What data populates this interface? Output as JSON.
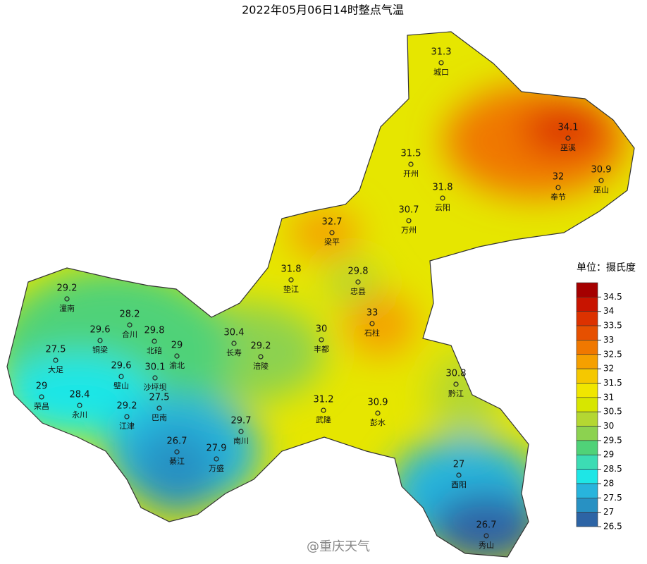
{
  "title": "2022年05月06日14时整点气温",
  "stations": [
    {
      "name": "城口",
      "value": 31.3
    },
    {
      "name": "巫溪",
      "value": 34.1
    },
    {
      "name": "开州",
      "value": 31.5
    },
    {
      "name": "奉节",
      "value": 32
    },
    {
      "name": "巫山",
      "value": 30.9
    },
    {
      "name": "云阳",
      "value": 31.8
    },
    {
      "name": "万州",
      "value": 30.7
    },
    {
      "name": "梁平",
      "value": 32.7
    },
    {
      "name": "垫江",
      "value": 31.8
    },
    {
      "name": "忠县",
      "value": 29.8
    },
    {
      "name": "潼南",
      "value": 29.2
    },
    {
      "name": "合川",
      "value": 28.2
    },
    {
      "name": "石柱",
      "value": 33
    },
    {
      "name": "铜梁",
      "value": 29.6
    },
    {
      "name": "北碚",
      "value": 29.8
    },
    {
      "name": "长寿",
      "value": 30.4
    },
    {
      "name": "丰都",
      "value": 30
    },
    {
      "name": "大足",
      "value": 27.5
    },
    {
      "name": "渝北",
      "value": 29
    },
    {
      "name": "涪陵",
      "value": 29.2
    },
    {
      "name": "璧山",
      "value": 29.6
    },
    {
      "name": "沙坪坝",
      "value": 30.1
    },
    {
      "name": "黔江",
      "value": 30.8
    },
    {
      "name": "荣昌",
      "value": 29
    },
    {
      "name": "永川",
      "value": 28.4
    },
    {
      "name": "巴南",
      "value": 27.5
    },
    {
      "name": "江津",
      "value": 29.2
    },
    {
      "name": "武隆",
      "value": 31.2
    },
    {
      "name": "彭水",
      "value": 30.9
    },
    {
      "name": "南川",
      "value": 29.7
    },
    {
      "name": "綦江",
      "value": 26.7
    },
    {
      "name": "万盛",
      "value": 27.9
    },
    {
      "name": "酉阳",
      "value": 27
    },
    {
      "name": "秀山",
      "value": 26.7
    }
  ],
  "legend": {
    "title": "单位：摄氏度",
    "ticks": [
      34.5,
      34,
      33.5,
      33,
      32.5,
      32,
      31.5,
      31,
      30.5,
      30,
      29.5,
      29,
      28.5,
      28,
      27.5,
      27,
      26.5
    ],
    "colors": [
      "#a50000",
      "#c81400",
      "#dc3200",
      "#e65000",
      "#f07800",
      "#f5a000",
      "#f5c800",
      "#f0e600",
      "#d7e600",
      "#b4d732",
      "#8cd250",
      "#50d278",
      "#3cdcb4",
      "#1ee6e6",
      "#28b4dc",
      "#2891c3",
      "#2d64a5"
    ]
  },
  "watermark": "@重庆天气"
}
